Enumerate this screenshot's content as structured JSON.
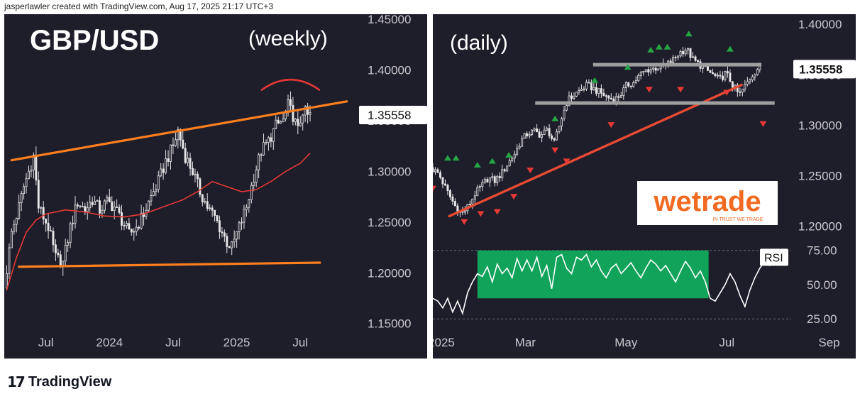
{
  "attribution": "jasperlawler created with TradingView.com, Aug 17, 2025 21:17 UTC+3",
  "footer_brand": "TradingView",
  "footer_icon": "tradingview-logo-icon",
  "watermark": "wetrade",
  "watermark_tagline": "IN TRUST WE TRADE",
  "chart_data": [
    {
      "type": "candlestick",
      "title": "GBP/USD",
      "subtitle": "(weekly)",
      "y_ticks": [
        "1.45000",
        "1.40000",
        "1.35000",
        "1.30000",
        "1.25000",
        "1.20000",
        "1.15000"
      ],
      "ylim": [
        1.14,
        1.455
      ],
      "x_ticks": [
        "Jul",
        "2024",
        "Jul",
        "2025",
        "Jul"
      ],
      "x_tick_positions": [
        0,
        26,
        52,
        78,
        104
      ],
      "x_range": [
        -17,
        128
      ],
      "last_price_label": "1.35558",
      "last_price": 1.35558,
      "colors": {
        "candle": "#e6e6e6",
        "trendline": "#ff7f1e",
        "ma": "#e53935",
        "arc": "#e53935",
        "background": "#1e1d2a"
      },
      "price_path": [
        [
          -16,
          1.185
        ],
        [
          -13,
          1.24
        ],
        [
          -10,
          1.265
        ],
        [
          -8,
          1.285
        ],
        [
          -6,
          1.3
        ],
        [
          -4,
          1.315
        ],
        [
          -2,
          1.265
        ],
        [
          2,
          1.245
        ],
        [
          5,
          1.215
        ],
        [
          8,
          1.21
        ],
        [
          11,
          1.245
        ],
        [
          14,
          1.27
        ],
        [
          17,
          1.262
        ],
        [
          20,
          1.272
        ],
        [
          23,
          1.262
        ],
        [
          26,
          1.27
        ],
        [
          29,
          1.265
        ],
        [
          32,
          1.252
        ],
        [
          35,
          1.238
        ],
        [
          38,
          1.245
        ],
        [
          41,
          1.258
        ],
        [
          44,
          1.275
        ],
        [
          47,
          1.29
        ],
        [
          50,
          1.31
        ],
        [
          53,
          1.325
        ],
        [
          55,
          1.34
        ],
        [
          58,
          1.315
        ],
        [
          61,
          1.3
        ],
        [
          64,
          1.28
        ],
        [
          67,
          1.265
        ],
        [
          70,
          1.255
        ],
        [
          72,
          1.245
        ],
        [
          75,
          1.23
        ],
        [
          77,
          1.225
        ],
        [
          80,
          1.245
        ],
        [
          83,
          1.265
        ],
        [
          86,
          1.295
        ],
        [
          89,
          1.32
        ],
        [
          92,
          1.33
        ],
        [
          95,
          1.345
        ],
        [
          98,
          1.35
        ],
        [
          100,
          1.365
        ],
        [
          102,
          1.355
        ],
        [
          104,
          1.34
        ],
        [
          106,
          1.36
        ],
        [
          108,
          1.355
        ]
      ],
      "moving_average": [
        [
          -16,
          1.183
        ],
        [
          -12,
          1.215
        ],
        [
          -8,
          1.24
        ],
        [
          -4,
          1.252
        ],
        [
          0,
          1.258
        ],
        [
          8,
          1.262
        ],
        [
          16,
          1.26
        ],
        [
          24,
          1.256
        ],
        [
          32,
          1.255
        ],
        [
          40,
          1.258
        ],
        [
          48,
          1.265
        ],
        [
          56,
          1.272
        ],
        [
          62,
          1.28
        ],
        [
          68,
          1.29
        ],
        [
          74,
          1.285
        ],
        [
          80,
          1.28
        ],
        [
          86,
          1.282
        ],
        [
          92,
          1.29
        ],
        [
          98,
          1.3
        ],
        [
          104,
          1.308
        ],
        [
          108,
          1.318
        ]
      ],
      "upper_trendline": [
        [
          -14,
          1.311
        ],
        [
          123,
          1.369
        ]
      ],
      "lower_trendline": [
        [
          -11,
          1.206
        ],
        [
          112,
          1.21
        ]
      ],
      "resistance_arc": {
        "center_x": 100,
        "y_level": 1.38,
        "half_width": 12
      }
    },
    {
      "type": "candlestick",
      "subtitle": "(daily)",
      "y_ticks": [
        "1.40000",
        "1.35000",
        "1.30000",
        "1.25000",
        "1.20000"
      ],
      "ylim": [
        1.185,
        1.41
      ],
      "x_ticks": [
        "2025",
        "Mar",
        "May",
        "Jul",
        "Sep"
      ],
      "x_tick_positions": [
        0,
        59,
        120,
        181,
        243
      ],
      "x_range": [
        3,
        220
      ],
      "last_price_label": "1.35558",
      "last_price": 1.35558,
      "colors": {
        "candle": "#e6e6e6",
        "trendline": "#e84a33",
        "support": "#9e9e9e",
        "up_signal": "#26a544",
        "down_signal": "#e53935",
        "background": "#1e1d2a"
      },
      "price_path": [
        [
          3,
          1.258
        ],
        [
          8,
          1.252
        ],
        [
          13,
          1.235
        ],
        [
          18,
          1.22
        ],
        [
          22,
          1.212
        ],
        [
          26,
          1.22
        ],
        [
          30,
          1.232
        ],
        [
          34,
          1.24
        ],
        [
          38,
          1.248
        ],
        [
          42,
          1.245
        ],
        [
          46,
          1.252
        ],
        [
          50,
          1.262
        ],
        [
          54,
          1.272
        ],
        [
          58,
          1.285
        ],
        [
          62,
          1.292
        ],
        [
          66,
          1.294
        ],
        [
          70,
          1.29
        ],
        [
          74,
          1.296
        ],
        [
          78,
          1.282
        ],
        [
          82,
          1.305
        ],
        [
          86,
          1.325
        ],
        [
          90,
          1.33
        ],
        [
          94,
          1.335
        ],
        [
          98,
          1.34
        ],
        [
          102,
          1.336
        ],
        [
          106,
          1.332
        ],
        [
          110,
          1.328
        ],
        [
          114,
          1.325
        ],
        [
          118,
          1.33
        ],
        [
          122,
          1.34
        ],
        [
          126,
          1.342
        ],
        [
          130,
          1.35
        ],
        [
          134,
          1.355
        ],
        [
          138,
          1.356
        ],
        [
          142,
          1.358
        ],
        [
          146,
          1.36
        ],
        [
          150,
          1.365
        ],
        [
          154,
          1.372
        ],
        [
          158,
          1.376
        ],
        [
          162,
          1.365
        ],
        [
          166,
          1.36
        ],
        [
          170,
          1.355
        ],
        [
          174,
          1.35
        ],
        [
          178,
          1.345
        ],
        [
          182,
          1.352
        ],
        [
          186,
          1.34
        ],
        [
          190,
          1.33
        ],
        [
          194,
          1.34
        ],
        [
          198,
          1.35
        ],
        [
          202,
          1.358
        ]
      ],
      "trendline": [
        [
          13,
          1.21
        ],
        [
          190,
          1.34
        ]
      ],
      "resistance_level": 1.36,
      "resistance_span": [
        100,
        202
      ],
      "support_level": 1.322,
      "support_span": [
        65,
        210
      ],
      "up_signals": [
        [
          12,
          1.265
        ],
        [
          17,
          1.265
        ],
        [
          30,
          1.258
        ],
        [
          39,
          1.262
        ],
        [
          49,
          1.268
        ],
        [
          77,
          1.304
        ],
        [
          101,
          1.342
        ],
        [
          121,
          1.355
        ],
        [
          135,
          1.372
        ],
        [
          140,
          1.375
        ],
        [
          145,
          1.375
        ],
        [
          158,
          1.388
        ],
        [
          183,
          1.373
        ]
      ],
      "down_signals": [
        [
          3,
          1.24
        ],
        [
          22,
          1.207
        ],
        [
          32,
          1.215
        ],
        [
          42,
          1.217
        ],
        [
          52,
          1.232
        ],
        [
          62,
          1.258
        ],
        [
          77,
          1.278
        ],
        [
          84,
          1.267
        ],
        [
          111,
          1.303
        ],
        [
          134,
          1.338
        ],
        [
          153,
          1.338
        ],
        [
          181,
          1.335
        ],
        [
          203,
          1.304
        ]
      ],
      "rsi": {
        "label": "RSI",
        "y_ticks": [
          "75.00",
          "50.00",
          "25.00"
        ],
        "ylim": [
          22,
          79
        ],
        "zone": {
          "x_range": [
            30,
            170
          ],
          "y_range": [
            40,
            75
          ],
          "color": "#12a35a"
        },
        "values": [
          [
            3,
            40
          ],
          [
            6,
            38
          ],
          [
            9,
            33
          ],
          [
            12,
            40
          ],
          [
            15,
            30
          ],
          [
            18,
            38
          ],
          [
            21,
            29
          ],
          [
            24,
            44
          ],
          [
            27,
            52
          ],
          [
            30,
            58
          ],
          [
            33,
            56
          ],
          [
            36,
            63
          ],
          [
            39,
            52
          ],
          [
            42,
            65
          ],
          [
            45,
            58
          ],
          [
            48,
            62
          ],
          [
            51,
            55
          ],
          [
            54,
            69
          ],
          [
            57,
            60
          ],
          [
            60,
            68
          ],
          [
            63,
            60
          ],
          [
            66,
            70
          ],
          [
            69,
            56
          ],
          [
            72,
            64
          ],
          [
            75,
            47
          ],
          [
            78,
            70
          ],
          [
            81,
            72
          ],
          [
            84,
            62
          ],
          [
            87,
            58
          ],
          [
            90,
            70
          ],
          [
            93,
            68
          ],
          [
            96,
            72
          ],
          [
            99,
            63
          ],
          [
            102,
            68
          ],
          [
            105,
            60
          ],
          [
            108,
            55
          ],
          [
            111,
            62
          ],
          [
            114,
            65
          ],
          [
            117,
            58
          ],
          [
            120,
            62
          ],
          [
            123,
            66
          ],
          [
            126,
            60
          ],
          [
            129,
            55
          ],
          [
            132,
            62
          ],
          [
            135,
            68
          ],
          [
            138,
            65
          ],
          [
            141,
            60
          ],
          [
            144,
            64
          ],
          [
            147,
            58
          ],
          [
            150,
            52
          ],
          [
            153,
            60
          ],
          [
            156,
            67
          ],
          [
            159,
            62
          ],
          [
            162,
            55
          ],
          [
            165,
            60
          ],
          [
            168,
            52
          ],
          [
            171,
            40
          ],
          [
            174,
            38
          ],
          [
            177,
            44
          ],
          [
            180,
            50
          ],
          [
            183,
            58
          ],
          [
            186,
            52
          ],
          [
            189,
            42
          ],
          [
            192,
            34
          ],
          [
            195,
            46
          ],
          [
            198,
            55
          ],
          [
            201,
            62
          ],
          [
            204,
            67
          ],
          [
            207,
            64
          ],
          [
            210,
            70
          ]
        ]
      }
    }
  ]
}
